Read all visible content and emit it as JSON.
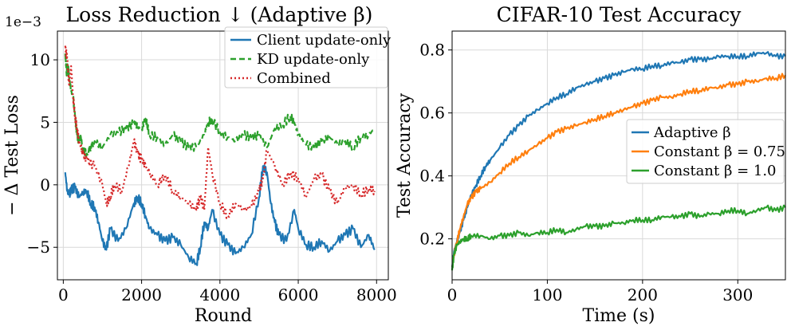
{
  "chart_data": [
    {
      "type": "line",
      "title": "Loss Reduction",
      "title_arrow": "↓",
      "title_paren": "(Adaptive β)",
      "xlabel": "Round",
      "ylabel": "− Δ Test Loss",
      "y_offset_label": "1e−3",
      "xlim": [
        -150,
        8300
      ],
      "ylim": [
        -7.6,
        12.3
      ],
      "xticks": [
        0,
        2000,
        4000,
        6000,
        8000
      ],
      "xtick_labels": [
        "0",
        "2000",
        "4000",
        "6000",
        "8000"
      ],
      "yticks": [
        -5,
        0,
        5,
        10
      ],
      "ytick_labels": [
        "−5",
        "0",
        "5",
        "10"
      ],
      "grid": true,
      "legend_position": "top-right",
      "series": [
        {
          "name": "Client update-only",
          "color": "#1f77b4",
          "dash": "solid",
          "x": [
            50,
            100,
            150,
            200,
            300,
            400,
            500,
            600,
            700,
            800,
            900,
            1000,
            1100,
            1200,
            1400,
            1600,
            1800,
            1900,
            2000,
            2100,
            2200,
            2400,
            2600,
            2800,
            3000,
            3200,
            3400,
            3500,
            3600,
            3700,
            3800,
            4000,
            4200,
            4400,
            4600,
            4800,
            5000,
            5100,
            5200,
            5300,
            5400,
            5500,
            5700,
            5900,
            6000,
            6200,
            6400,
            6600,
            6800,
            7000,
            7200,
            7400,
            7600,
            7800,
            7950
          ],
          "values": [
            1.0,
            -0.5,
            -0.8,
            -0.4,
            -0.2,
            -1.0,
            -0.6,
            -0.5,
            -1.5,
            -1.8,
            -3.0,
            -4.5,
            -5.2,
            -3.5,
            -4.5,
            -3.5,
            -1.5,
            -1.0,
            -1.5,
            -2.5,
            -3.5,
            -4.0,
            -4.5,
            -4.2,
            -4.8,
            -5.8,
            -6.3,
            -5.0,
            -3.0,
            -3.5,
            -2.0,
            -4.0,
            -4.8,
            -5.5,
            -5.0,
            -4.0,
            -1.0,
            1.5,
            1.0,
            -1.5,
            -3.0,
            -4.0,
            -4.5,
            -2.0,
            -3.5,
            -4.8,
            -5.0,
            -4.5,
            -5.3,
            -4.5,
            -4.0,
            -3.5,
            -5.0,
            -4.0,
            -5.2
          ]
        },
        {
          "name": "KD update-only",
          "color": "#2ca02c",
          "dash": "dashed",
          "x": [
            50,
            80,
            120,
            150,
            200,
            250,
            300,
            350,
            400,
            450,
            500,
            600,
            800,
            1000,
            1200,
            1400,
            1600,
            1800,
            1900,
            2000,
            2100,
            2200,
            2400,
            2600,
            2800,
            3000,
            3200,
            3400,
            3600,
            3700,
            3800,
            4000,
            4200,
            4400,
            4600,
            4800,
            5000,
            5200,
            5400,
            5600,
            5800,
            5900,
            6000,
            6200,
            6400,
            6600,
            6800,
            7000,
            7200,
            7400,
            7600,
            7800,
            7950
          ],
          "values": [
            10.5,
            9.0,
            9.5,
            8.5,
            7.5,
            7.0,
            5.5,
            4.0,
            3.5,
            3.8,
            2.8,
            2.5,
            3.5,
            3.0,
            4.0,
            4.2,
            4.5,
            5.0,
            4.6,
            4.5,
            5.3,
            4.0,
            3.8,
            3.2,
            4.0,
            3.5,
            3.0,
            3.0,
            4.0,
            5.0,
            5.2,
            4.2,
            3.8,
            3.5,
            4.0,
            3.8,
            4.0,
            3.0,
            4.5,
            4.8,
            5.5,
            5.0,
            4.0,
            3.2,
            3.0,
            3.5,
            3.8,
            3.3,
            3.5,
            3.0,
            3.8,
            4.0,
            4.5
          ]
        },
        {
          "name": "Combined",
          "color": "#d62728",
          "dash": "dotted",
          "x": [
            50,
            100,
            150,
            200,
            250,
            300,
            350,
            400,
            450,
            500,
            600,
            800,
            1000,
            1100,
            1200,
            1300,
            1500,
            1700,
            1800,
            1900,
            2000,
            2100,
            2200,
            2400,
            2600,
            2800,
            3000,
            3200,
            3400,
            3500,
            3600,
            3700,
            3800,
            4000,
            4200,
            4400,
            4600,
            4800,
            5000,
            5100,
            5200,
            5400,
            5600,
            5800,
            6000,
            6200,
            6400,
            6600,
            6800,
            7000,
            7200,
            7400,
            7600,
            7800,
            7950
          ],
          "values": [
            11.0,
            10.0,
            8.0,
            9.5,
            7.0,
            5.5,
            4.5,
            3.5,
            3.0,
            2.5,
            2.0,
            1.5,
            0.0,
            -1.5,
            -1.0,
            0.0,
            -0.5,
            2.0,
            3.5,
            2.5,
            2.0,
            1.5,
            1.0,
            0.0,
            0.8,
            -0.5,
            -1.0,
            -1.5,
            -2.0,
            -1.0,
            -2.0,
            3.0,
            1.0,
            -1.5,
            -2.5,
            -1.5,
            -2.0,
            -1.8,
            -0.5,
            0.5,
            2.8,
            1.5,
            0.0,
            1.0,
            0.5,
            -1.0,
            0.5,
            0.8,
            -0.5,
            -1.5,
            -0.2,
            0.0,
            -0.8,
            -0.3,
            -0.5
          ]
        }
      ]
    },
    {
      "type": "line",
      "title": "CIFAR-10 Test Accuracy",
      "xlabel": "Time (s)",
      "ylabel": "Test Accuracy",
      "xlim": [
        0,
        350
      ],
      "ylim": [
        0.07,
        0.86
      ],
      "xticks": [
        0,
        100,
        200,
        300
      ],
      "xtick_labels": [
        "0",
        "100",
        "200",
        "300"
      ],
      "yticks": [
        0.2,
        0.4,
        0.6,
        0.8
      ],
      "ytick_labels": [
        "0.2",
        "0.4",
        "0.6",
        "0.8"
      ],
      "grid": true,
      "legend_position": "center-right",
      "series": [
        {
          "name": "Adaptive β",
          "color": "#1f77b4",
          "x": [
            0,
            2,
            5,
            8,
            12,
            16,
            20,
            25,
            30,
            35,
            40,
            50,
            60,
            70,
            80,
            90,
            100,
            110,
            120,
            130,
            140,
            150,
            160,
            170,
            180,
            190,
            200,
            210,
            220,
            230,
            240,
            250,
            260,
            270,
            280,
            290,
            300,
            310,
            320,
            330,
            340,
            350
          ],
          "values": [
            0.11,
            0.16,
            0.19,
            0.22,
            0.26,
            0.3,
            0.34,
            0.37,
            0.4,
            0.43,
            0.45,
            0.49,
            0.53,
            0.56,
            0.59,
            0.61,
            0.63,
            0.65,
            0.66,
            0.68,
            0.69,
            0.7,
            0.71,
            0.72,
            0.73,
            0.74,
            0.74,
            0.75,
            0.75,
            0.76,
            0.76,
            0.77,
            0.77,
            0.77,
            0.78,
            0.78,
            0.78,
            0.78,
            0.79,
            0.79,
            0.78,
            0.78
          ]
        },
        {
          "name": "Constant β = 0.75",
          "color": "#ff7f0e",
          "x": [
            0,
            2,
            5,
            8,
            12,
            16,
            20,
            25,
            30,
            40,
            50,
            60,
            70,
            80,
            90,
            100,
            110,
            120,
            130,
            140,
            150,
            160,
            170,
            180,
            190,
            200,
            210,
            220,
            230,
            240,
            250,
            260,
            270,
            280,
            290,
            300,
            310,
            320,
            330,
            340,
            350
          ],
          "values": [
            0.11,
            0.15,
            0.19,
            0.23,
            0.27,
            0.31,
            0.33,
            0.35,
            0.36,
            0.38,
            0.41,
            0.44,
            0.46,
            0.48,
            0.5,
            0.52,
            0.54,
            0.55,
            0.56,
            0.57,
            0.58,
            0.59,
            0.6,
            0.61,
            0.62,
            0.63,
            0.64,
            0.65,
            0.65,
            0.66,
            0.67,
            0.67,
            0.68,
            0.68,
            0.69,
            0.69,
            0.7,
            0.7,
            0.71,
            0.71,
            0.72
          ]
        },
        {
          "name": "Constant β = 1.0",
          "color": "#2ca02c",
          "x": [
            0,
            2,
            5,
            8,
            12,
            16,
            20,
            30,
            40,
            50,
            60,
            70,
            80,
            90,
            100,
            110,
            120,
            130,
            140,
            150,
            160,
            170,
            180,
            190,
            200,
            210,
            220,
            230,
            240,
            250,
            260,
            270,
            280,
            290,
            300,
            310,
            320,
            330,
            340,
            350
          ],
          "values": [
            0.1,
            0.15,
            0.18,
            0.19,
            0.2,
            0.2,
            0.21,
            0.21,
            0.2,
            0.21,
            0.21,
            0.22,
            0.21,
            0.22,
            0.22,
            0.23,
            0.22,
            0.23,
            0.24,
            0.24,
            0.24,
            0.25,
            0.25,
            0.26,
            0.26,
            0.26,
            0.27,
            0.27,
            0.27,
            0.28,
            0.27,
            0.28,
            0.28,
            0.29,
            0.29,
            0.28,
            0.29,
            0.3,
            0.29,
            0.3
          ]
        }
      ]
    }
  ]
}
